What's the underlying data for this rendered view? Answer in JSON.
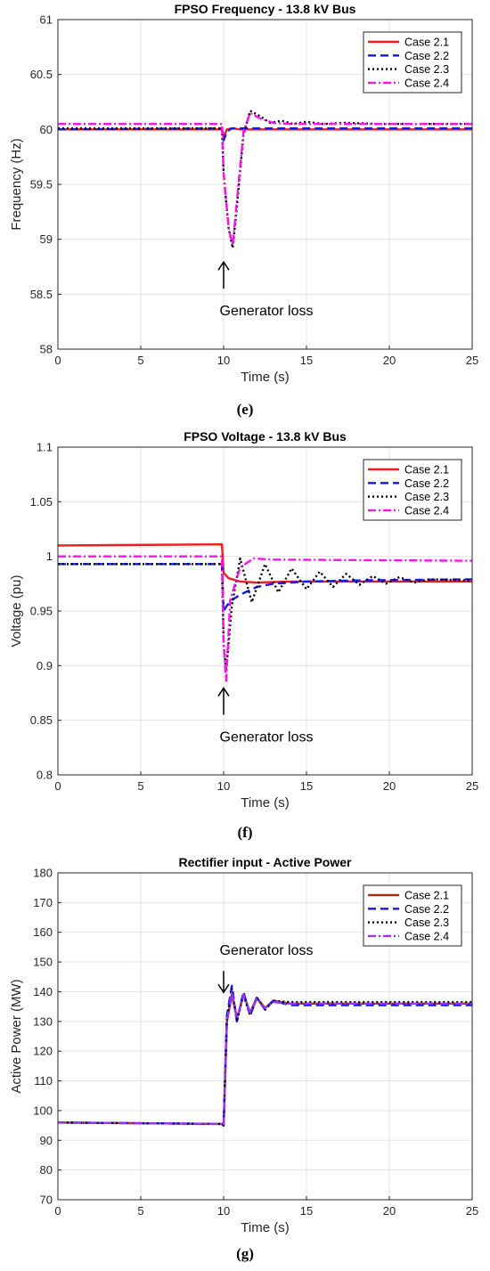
{
  "chart_data": [
    {
      "type": "line",
      "panel_label": "(e)",
      "title": "FPSO Frequency - 13.8 kV Bus",
      "xlabel": "Time (s)",
      "ylabel": "Frequency (Hz)",
      "xlim": [
        0,
        25
      ],
      "ylim": [
        58,
        61
      ],
      "xticks": [
        "0",
        "5",
        "10",
        "15",
        "20",
        "25"
      ],
      "yticks": [
        "58",
        "58.5",
        "59",
        "59.5",
        "60",
        "60.5",
        "61"
      ],
      "grid": true,
      "legend_position": "top-right",
      "annotation": {
        "text": "Generator loss",
        "arrow": "up",
        "x": 10,
        "y": 58.55
      },
      "series": [
        {
          "name": "Case 2.1",
          "color": "#ee1c1c",
          "dash": "solid",
          "x": [
            0,
            9.9,
            10.0,
            10.2,
            10.5,
            11,
            25
          ],
          "y": [
            60.0,
            60.0,
            59.93,
            60.0,
            60.01,
            60.0,
            60.0
          ]
        },
        {
          "name": "Case 2.2",
          "color": "#1515ff",
          "dash": "dash",
          "x": [
            0,
            9.9,
            10.0,
            10.2,
            10.5,
            11,
            25
          ],
          "y": [
            60.0,
            60.01,
            59.9,
            59.98,
            60.01,
            60.01,
            60.01
          ]
        },
        {
          "name": "Case 2.3",
          "color": "#000000",
          "dash": "dot",
          "x": [
            0,
            9.9,
            10.0,
            10.3,
            10.55,
            10.8,
            11.2,
            11.6,
            12.2,
            12.8,
            13.5,
            14.2,
            15,
            16,
            17.4,
            19.4,
            25
          ],
          "y": [
            60.01,
            60.01,
            59.6,
            59.1,
            58.92,
            59.3,
            59.95,
            60.17,
            60.12,
            60.06,
            60.08,
            60.05,
            60.07,
            60.05,
            60.06,
            60.05,
            60.05
          ]
        },
        {
          "name": "Case 2.4",
          "color": "#ff10ee",
          "dash": "dashdot",
          "x": [
            0,
            9.9,
            10.0,
            10.3,
            10.55,
            10.8,
            11.2,
            11.6,
            12.2,
            13,
            14,
            25
          ],
          "y": [
            60.05,
            60.05,
            59.6,
            59.1,
            58.95,
            59.35,
            59.98,
            60.15,
            60.1,
            60.06,
            60.05,
            60.05
          ]
        }
      ]
    },
    {
      "type": "line",
      "panel_label": "(f)",
      "title": "FPSO Voltage - 13.8 kV Bus",
      "xlabel": "Time (s)",
      "ylabel": "Voltage (pu)",
      "xlim": [
        0,
        25
      ],
      "ylim": [
        0.8,
        1.1
      ],
      "xticks": [
        "0",
        "5",
        "10",
        "15",
        "20",
        "25"
      ],
      "yticks": [
        "0.8",
        "0.85",
        "0.9",
        "0.95",
        "1",
        "1.05",
        "1.1"
      ],
      "grid": true,
      "legend_position": "top-right",
      "annotation": {
        "text": "Generator loss",
        "arrow": "up",
        "x": 10,
        "y": 0.855
      },
      "series": [
        {
          "name": "Case 2.1",
          "color": "#ee1c1c",
          "dash": "solid",
          "x": [
            0,
            9.9,
            10.0,
            10.3,
            11,
            12,
            14,
            25
          ],
          "y": [
            1.01,
            1.011,
            0.985,
            0.98,
            0.977,
            0.976,
            0.977,
            0.977
          ]
        },
        {
          "name": "Case 2.2",
          "color": "#1515ff",
          "dash": "dash",
          "x": [
            0,
            9.9,
            10.0,
            10.2,
            10.5,
            11,
            12,
            13,
            15,
            18,
            25
          ],
          "y": [
            0.993,
            0.993,
            0.95,
            0.955,
            0.96,
            0.965,
            0.972,
            0.975,
            0.977,
            0.978,
            0.979
          ]
        },
        {
          "name": "Case 2.3",
          "color": "#000000",
          "dash": "dot",
          "x": [
            0,
            9.9,
            10.0,
            10.15,
            10.5,
            11.0,
            11.7,
            12.5,
            13.3,
            14.1,
            15.0,
            15.8,
            16.6,
            17.4,
            18.2,
            19.0,
            19.8,
            20.6,
            21.5,
            22.4,
            25
          ],
          "y": [
            0.993,
            0.993,
            0.92,
            0.895,
            0.955,
            0.998,
            0.958,
            0.993,
            0.967,
            0.989,
            0.97,
            0.986,
            0.972,
            0.984,
            0.974,
            0.982,
            0.975,
            0.981,
            0.976,
            0.979,
            0.978
          ]
        },
        {
          "name": "Case 2.4",
          "color": "#ff10ee",
          "dash": "dashdot",
          "x": [
            0,
            9.9,
            10.0,
            10.15,
            10.4,
            11,
            11.8,
            13,
            25
          ],
          "y": [
            1.0,
            1.0,
            0.92,
            0.886,
            0.96,
            0.99,
            0.998,
            0.997,
            0.996
          ]
        }
      ]
    },
    {
      "type": "line",
      "panel_label": "(g)",
      "title": "Rectifier input - Active Power",
      "xlabel": "Time (s)",
      "ylabel": "Active Power (MW)",
      "xlim": [
        0,
        25
      ],
      "ylim": [
        70,
        180
      ],
      "xticks": [
        "0",
        "5",
        "10",
        "15",
        "20",
        "25"
      ],
      "yticks": [
        "70",
        "80",
        "90",
        "100",
        "110",
        "120",
        "130",
        "140",
        "150",
        "160",
        "170",
        "180"
      ],
      "grid": true,
      "legend_position": "top-right",
      "annotation": {
        "text": "Generator loss",
        "arrow": "down",
        "x": 10,
        "y": 144
      },
      "series": [
        {
          "name": "Case 2.1",
          "color": "#a0301a",
          "dash": "solid",
          "x": [
            0,
            9.9,
            10.0,
            10.2,
            10.5,
            10.8,
            11.2,
            11.6,
            12.0,
            12.5,
            13.0,
            14,
            25
          ],
          "y": [
            96,
            95.5,
            95,
            130,
            139,
            131,
            139,
            133,
            138,
            134.5,
            137,
            136,
            136
          ]
        },
        {
          "name": "Case 2.2",
          "color": "#1515ff",
          "dash": "dash",
          "x": [
            0,
            9.9,
            10.0,
            10.2,
            10.5,
            10.8,
            11.2,
            11.6,
            12.0,
            12.5,
            13.0,
            14,
            25
          ],
          "y": [
            96,
            95.5,
            95,
            132,
            142,
            130,
            140,
            132,
            138,
            134,
            137,
            135.5,
            135.5
          ]
        },
        {
          "name": "Case 2.3",
          "color": "#000000",
          "dash": "dot",
          "x": [
            0,
            9.9,
            10.0,
            10.2,
            10.5,
            10.8,
            11.2,
            11.6,
            12.0,
            12.5,
            13.0,
            14,
            25
          ],
          "y": [
            96,
            95.5,
            95,
            131,
            141,
            130,
            139,
            132,
            138,
            134,
            137,
            136.5,
            136.5
          ]
        },
        {
          "name": "Case 2.4",
          "color": "#9a34f5",
          "dash": "dashdot",
          "x": [
            0,
            9.9,
            10.0,
            10.2,
            10.5,
            10.8,
            11.2,
            11.6,
            12.0,
            12.5,
            13.0,
            14,
            25
          ],
          "y": [
            96,
            95.5,
            95,
            130,
            140,
            131,
            139,
            133,
            137.5,
            134.5,
            136.5,
            136,
            136
          ]
        }
      ]
    }
  ]
}
